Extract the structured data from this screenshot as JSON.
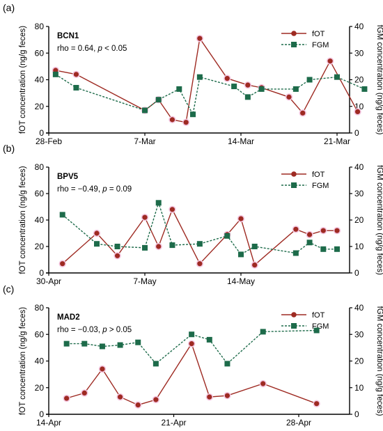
{
  "chart_data": [
    {
      "type": "line",
      "panel_label": "(a)",
      "animal": "BCN1",
      "stat_text": "rho = 0.64, ",
      "stat_p": "p",
      "stat_tail": " < 0.05",
      "ylabel_left": "fOT concentration (ng/g feces)",
      "ylabel_right": "fGM concentration (ng/g feces)",
      "ylim_left": [
        0,
        80
      ],
      "yticks_left": [
        "0",
        "20",
        "40",
        "60",
        "80"
      ],
      "ylim_right": [
        0,
        40
      ],
      "yticks_right": [
        "0",
        "10",
        "20",
        "30",
        "40"
      ],
      "xlim_days": [
        0,
        21
      ],
      "xticks": [
        {
          "day": 0,
          "label": "28-Feb"
        },
        {
          "day": 7,
          "label": "7-Mar"
        },
        {
          "day": 14,
          "label": "14-Mar"
        },
        {
          "day": 21,
          "label": "21-Mar"
        }
      ],
      "series": [
        {
          "name": "fOT",
          "axis": "left",
          "x": [
            0.5,
            2,
            7,
            8,
            9,
            10,
            11,
            13,
            14.5,
            15.5,
            17.5,
            18.5,
            20.5,
            22.5
          ],
          "values": [
            47,
            44,
            17,
            25,
            10,
            8,
            71,
            41,
            36,
            34,
            27,
            15,
            54,
            16
          ]
        },
        {
          "name": "FGM",
          "axis": "right",
          "x": [
            0.5,
            2,
            7,
            8,
            9.5,
            10.5,
            11,
            13.5,
            14.5,
            15.5,
            18,
            19,
            21,
            23
          ],
          "values": [
            22,
            17,
            8.5,
            12.5,
            16.5,
            7,
            21,
            17.5,
            13.5,
            16.5,
            16.5,
            20,
            21,
            16.5
          ]
        }
      ]
    },
    {
      "type": "line",
      "panel_label": "(b)",
      "animal": "BPV5",
      "stat_text": "rho = −0.49, ",
      "stat_p": "p",
      "stat_tail": " = 0.09",
      "ylabel_left": "fOT concentration (ng/g feces)",
      "ylabel_right": "fGM concentration (ng/g feces)",
      "ylim_left": [
        0,
        80
      ],
      "yticks_left": [
        "0",
        "20",
        "40",
        "60",
        "80"
      ],
      "ylim_right": [
        0,
        40
      ],
      "yticks_right": [
        "0",
        "10",
        "20",
        "30",
        "40"
      ],
      "xlim_days": [
        0,
        21
      ],
      "xticks": [
        {
          "day": 0,
          "label": "30-Apr"
        },
        {
          "day": 7,
          "label": "7-May"
        },
        {
          "day": 14,
          "label": "14-May"
        }
      ],
      "series": [
        {
          "name": "fOT",
          "axis": "left",
          "x": [
            1,
            3.5,
            5,
            7,
            8,
            9,
            11,
            13,
            14,
            15,
            18,
            19,
            20,
            21
          ],
          "values": [
            7,
            30,
            13,
            42,
            20,
            48,
            7,
            29,
            41,
            6,
            33,
            29,
            32,
            32
          ]
        },
        {
          "name": "FGM",
          "axis": "right",
          "x": [
            1,
            3.5,
            5,
            7,
            8,
            9,
            11,
            13,
            14,
            15,
            18,
            19,
            20,
            21
          ],
          "values": [
            22,
            11,
            10,
            9.5,
            26.5,
            10.5,
            11,
            14,
            7,
            10,
            7.5,
            11.5,
            9,
            9
          ]
        }
      ]
    },
    {
      "type": "line",
      "panel_label": "(c)",
      "animal": "MAD2",
      "stat_text": "rho = −0.03, ",
      "stat_p": "p",
      "stat_tail": " > 0.05",
      "ylabel_left": "fOT concentration (ng/g feces)",
      "ylabel_right": "fGM concentration (ng/g feces)",
      "ylim_left": [
        0,
        80
      ],
      "yticks_left": [
        "0",
        "20",
        "40",
        "60",
        "80"
      ],
      "ylim_right": [
        0,
        40
      ],
      "yticks_right": [
        "0",
        "10",
        "20",
        "30",
        "40"
      ],
      "xlim_days": [
        0,
        14
      ],
      "xticks": [
        {
          "day": 0,
          "label": "14-Apr"
        },
        {
          "day": 7,
          "label": "21-Apr"
        },
        {
          "day": 14,
          "label": "28-Apr"
        }
      ],
      "series": [
        {
          "name": "fOT",
          "axis": "left",
          "x": [
            1,
            2,
            3,
            4,
            5,
            6,
            8,
            9,
            10,
            12,
            15
          ],
          "values": [
            12,
            16,
            34,
            13,
            7,
            11,
            53,
            13,
            14,
            23,
            8
          ]
        },
        {
          "name": "FGM",
          "axis": "right",
          "x": [
            1,
            2,
            3,
            4,
            5,
            6,
            8,
            9,
            10,
            12,
            15
          ],
          "values": [
            26.5,
            26.5,
            25.5,
            26,
            27,
            19,
            30,
            28,
            19,
            31,
            31.5
          ]
        }
      ]
    }
  ],
  "colors": {
    "fOT": "#9e2a22",
    "FGM": "#1d6b4a",
    "marker_halo": "#f3c6e0",
    "axis": "#000000"
  }
}
